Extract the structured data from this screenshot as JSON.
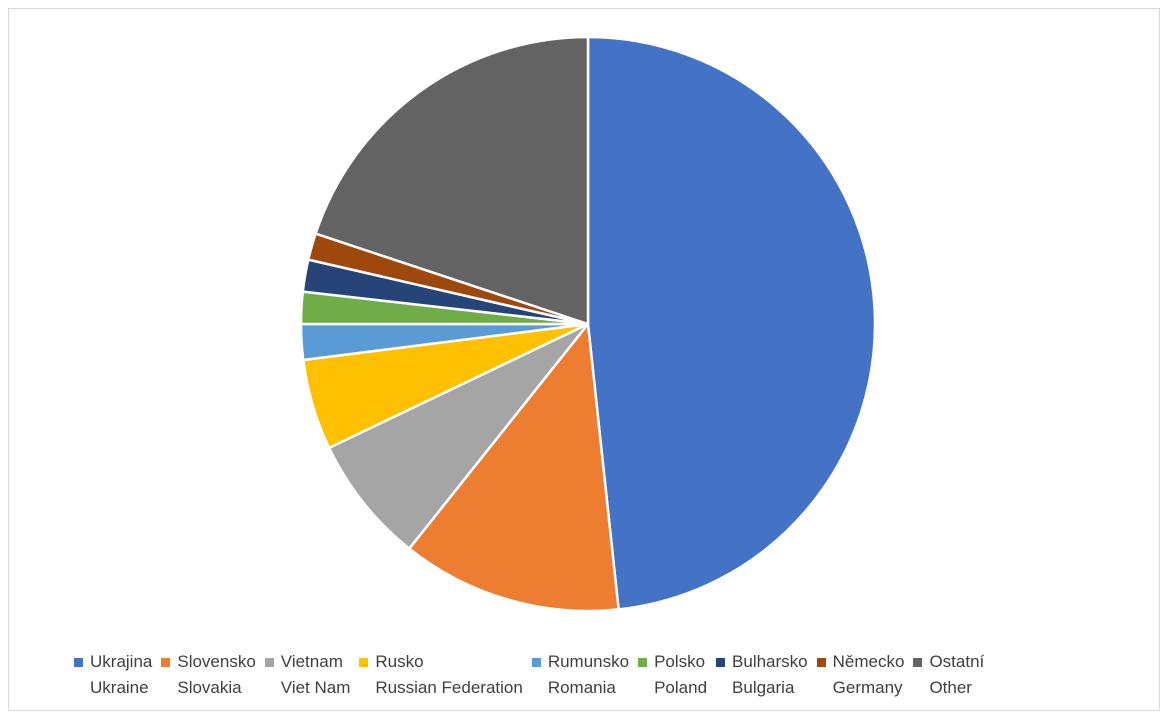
{
  "chart_data": {
    "type": "pie",
    "legend_position": "bottom",
    "slices": [
      {
        "label": "Ukrajina",
        "label_en": "Ukraine",
        "value": 48.3,
        "color": "#4472C4"
      },
      {
        "label": "Slovensko",
        "label_en": "Slovakia",
        "value": 12.4,
        "color": "#ED7D31"
      },
      {
        "label": "Vietnam",
        "label_en": "Viet Nam",
        "value": 7.2,
        "color": "#A5A5A5"
      },
      {
        "label": "Rusko",
        "label_en": "Russian Federation",
        "value": 5.1,
        "color": "#FFC000"
      },
      {
        "label": "Rumunsko",
        "label_en": "Romania",
        "value": 2.0,
        "color": "#5B9BD5"
      },
      {
        "label": "Polsko",
        "label_en": "Poland",
        "value": 1.8,
        "color": "#70AD47"
      },
      {
        "label": "Bulharsko",
        "label_en": "Bulgaria",
        "value": 1.8,
        "color": "#264478"
      },
      {
        "label": "Německo",
        "label_en": "Germany",
        "value": 1.5,
        "color": "#9E480E"
      },
      {
        "label": "Ostatní",
        "label_en": "Other",
        "value": 19.9,
        "color": "#636363"
      }
    ]
  }
}
